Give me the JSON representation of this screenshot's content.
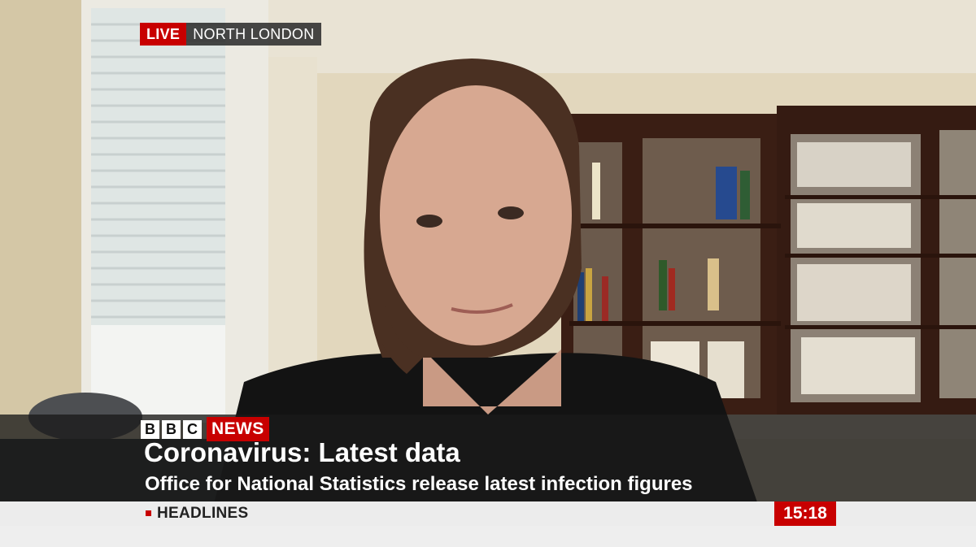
{
  "live_tag": {
    "live": "LIVE",
    "location": "NORTH LONDON"
  },
  "brand": {
    "letters": [
      "B",
      "B",
      "C"
    ],
    "news": "NEWS"
  },
  "lower_third": {
    "headline": "Coronavirus: Latest data",
    "subline": "Office for National Statistics release latest infection figures"
  },
  "ticker": {
    "label": "HEADLINES",
    "time": "15:18"
  },
  "colors": {
    "accent_red": "#c80000",
    "strap_dark": "#191919",
    "ticker_bg": "#ececec"
  }
}
